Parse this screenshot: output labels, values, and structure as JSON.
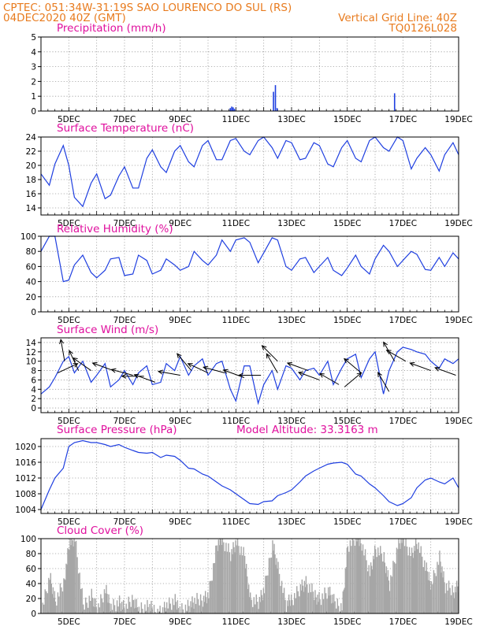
{
  "header": {
    "line1": "CPTEC:   051:34W-31:19S   SAO LOURENCO DO SUL (RS)",
    "line2": "04DEC2020 40Z (GMT)",
    "grid_note": "Vertical Grid Line: 40Z",
    "code": "TQ0126L028"
  },
  "x_axis": {
    "start_day": 4,
    "end_day": 19,
    "tick_labels": [
      "5DEC",
      "7DEC",
      "9DEC",
      "11DEC",
      "13DEC",
      "15DEC",
      "17DEC",
      "19DEC"
    ]
  },
  "colors": {
    "series": "#1f3fe0",
    "arrow": "#000000",
    "cloud": "#a6a6a6",
    "header": "#e87b1e",
    "title": "#e0109e"
  },
  "chart_data": [
    {
      "type": "bar",
      "title": "Precipitation (mm/h)",
      "ylim": [
        0,
        5
      ],
      "yticks": [
        0,
        1,
        2,
        3,
        4,
        5
      ],
      "x": [
        10.8,
        10.85,
        10.9,
        10.95,
        12.35,
        12.42,
        12.48,
        16.7
      ],
      "values": [
        0.2,
        0.3,
        0.25,
        0.15,
        1.3,
        1.75,
        0.2,
        1.2
      ]
    },
    {
      "type": "line",
      "title": "Surface Temperature (nC)",
      "ylim": [
        13,
        24
      ],
      "yticks": [
        14,
        16,
        18,
        20,
        22,
        24
      ],
      "x": [
        4.0,
        4.3,
        4.5,
        4.8,
        5.0,
        5.2,
        5.5,
        5.8,
        6.0,
        6.3,
        6.5,
        6.8,
        7.0,
        7.3,
        7.5,
        7.8,
        8.0,
        8.3,
        8.5,
        8.8,
        9.0,
        9.3,
        9.5,
        9.8,
        10.0,
        10.3,
        10.5,
        10.8,
        11.0,
        11.3,
        11.5,
        11.8,
        12.0,
        12.3,
        12.5,
        12.8,
        13.0,
        13.3,
        13.5,
        13.8,
        14.0,
        14.3,
        14.5,
        14.8,
        15.0,
        15.3,
        15.5,
        15.8,
        16.0,
        16.3,
        16.5,
        16.8,
        17.0,
        17.3,
        17.5,
        17.8,
        18.0,
        18.3,
        18.5,
        18.8,
        19.0
      ],
      "values": [
        18.8,
        17.2,
        20.2,
        22.8,
        20.0,
        15.5,
        14.2,
        17.5,
        18.8,
        15.3,
        15.8,
        18.5,
        19.8,
        16.8,
        16.8,
        21.0,
        22.2,
        19.8,
        19.0,
        22.0,
        22.8,
        20.5,
        19.8,
        22.8,
        23.5,
        20.8,
        20.8,
        23.5,
        23.8,
        22.0,
        21.5,
        23.5,
        24.0,
        22.5,
        21.0,
        23.5,
        23.2,
        20.8,
        21.0,
        23.2,
        22.8,
        20.2,
        19.8,
        22.5,
        23.5,
        21.0,
        20.5,
        23.5,
        24.0,
        22.5,
        22.0,
        24.0,
        23.5,
        19.5,
        21.0,
        22.5,
        21.5,
        19.2,
        21.5,
        23.2,
        21.5
      ]
    },
    {
      "type": "line",
      "title": "Relative Humidity (%)",
      "ylim": [
        0,
        100
      ],
      "yticks": [
        0,
        20,
        40,
        60,
        80,
        100
      ],
      "x": [
        4.0,
        4.3,
        4.5,
        4.8,
        5.0,
        5.2,
        5.5,
        5.8,
        6.0,
        6.3,
        6.5,
        6.8,
        7.0,
        7.3,
        7.5,
        7.8,
        8.0,
        8.3,
        8.5,
        8.8,
        9.0,
        9.3,
        9.5,
        9.8,
        10.0,
        10.3,
        10.5,
        10.8,
        11.0,
        11.3,
        11.5,
        11.8,
        12.0,
        12.3,
        12.5,
        12.8,
        13.0,
        13.3,
        13.5,
        13.8,
        14.0,
        14.3,
        14.5,
        14.8,
        15.0,
        15.3,
        15.5,
        15.8,
        16.0,
        16.3,
        16.5,
        16.8,
        17.0,
        17.3,
        17.5,
        17.8,
        18.0,
        18.3,
        18.5,
        18.8,
        19.0
      ],
      "values": [
        80,
        100,
        100,
        40,
        42,
        62,
        75,
        52,
        45,
        55,
        70,
        72,
        48,
        50,
        75,
        68,
        50,
        55,
        70,
        62,
        55,
        60,
        80,
        68,
        62,
        75,
        95,
        80,
        95,
        98,
        92,
        65,
        78,
        98,
        95,
        60,
        55,
        70,
        72,
        52,
        60,
        72,
        55,
        48,
        58,
        75,
        60,
        50,
        70,
        88,
        80,
        60,
        68,
        80,
        76,
        56,
        55,
        72,
        60,
        78,
        70
      ]
    },
    {
      "type": "line",
      "title": "Surface Wind (m/s)",
      "ylim": [
        -1,
        15
      ],
      "yticks": [
        0,
        2,
        4,
        6,
        8,
        10,
        12,
        14
      ],
      "x": [
        4.0,
        4.3,
        4.5,
        4.8,
        5.0,
        5.2,
        5.5,
        5.8,
        6.0,
        6.3,
        6.5,
        6.8,
        7.0,
        7.3,
        7.5,
        7.8,
        8.0,
        8.3,
        8.5,
        8.8,
        9.0,
        9.3,
        9.5,
        9.8,
        10.0,
        10.3,
        10.5,
        10.8,
        11.0,
        11.3,
        11.5,
        11.8,
        12.0,
        12.3,
        12.5,
        12.8,
        13.0,
        13.3,
        13.5,
        13.8,
        14.0,
        14.3,
        14.5,
        14.8,
        15.0,
        15.3,
        15.5,
        15.8,
        16.0,
        16.3,
        16.5,
        16.8,
        17.0,
        17.3,
        17.5,
        17.8,
        18.0,
        18.3,
        18.5,
        18.8,
        19.0
      ],
      "values": [
        3.0,
        4.5,
        6.5,
        10.0,
        11.0,
        7.5,
        10.0,
        5.5,
        7.0,
        9.5,
        4.5,
        6.0,
        8.0,
        5.0,
        7.5,
        9.0,
        5.0,
        5.5,
        9.5,
        8.0,
        11.0,
        7.0,
        9.0,
        10.5,
        7.0,
        9.5,
        10.0,
        4.0,
        1.5,
        9.0,
        9.0,
        1.0,
        5.0,
        8.0,
        4.0,
        9.0,
        8.5,
        6.0,
        8.0,
        8.5,
        7.0,
        10.0,
        5.0,
        8.5,
        10.5,
        11.5,
        6.5,
        10.5,
        12.0,
        3.0,
        8.0,
        12.0,
        13.0,
        12.5,
        12.0,
        11.5,
        10.0,
        8.5,
        10.5,
        9.5,
        10.5
      ],
      "arrows": [
        {
          "x": 4.6,
          "y": 7.5,
          "angle_deg": 25
        },
        {
          "x": 4.85,
          "y": 10.0,
          "angle_deg": 100
        },
        {
          "x": 5.35,
          "y": 8.0,
          "angle_deg": 115
        },
        {
          "x": 5.8,
          "y": 8.0,
          "angle_deg": 145
        },
        {
          "x": 6.6,
          "y": 8.0,
          "angle_deg": 160
        },
        {
          "x": 7.3,
          "y": 7.0,
          "angle_deg": 165
        },
        {
          "x": 7.7,
          "y": 6.8,
          "angle_deg": 180
        },
        {
          "x": 8.1,
          "y": 5.5,
          "angle_deg": 160
        },
        {
          "x": 9.0,
          "y": 7.0,
          "angle_deg": 170
        },
        {
          "x": 9.4,
          "y": 8.0,
          "angle_deg": 130
        },
        {
          "x": 10.0,
          "y": 7.5,
          "angle_deg": 155
        },
        {
          "x": 10.6,
          "y": 7.5,
          "angle_deg": 165
        },
        {
          "x": 11.3,
          "y": 6.5,
          "angle_deg": 160
        },
        {
          "x": 11.9,
          "y": 7.0,
          "angle_deg": 180
        },
        {
          "x": 12.5,
          "y": 10.0,
          "angle_deg": 135
        },
        {
          "x": 12.5,
          "y": 7.5,
          "angle_deg": 120
        },
        {
          "x": 13.6,
          "y": 8.0,
          "angle_deg": 160
        },
        {
          "x": 14.0,
          "y": 6.0,
          "angle_deg": 160
        },
        {
          "x": 14.7,
          "y": 5.0,
          "angle_deg": 150
        },
        {
          "x": 14.9,
          "y": 4.5,
          "angle_deg": 40
        },
        {
          "x": 15.5,
          "y": 7.5,
          "angle_deg": 140
        },
        {
          "x": 16.5,
          "y": 3.5,
          "angle_deg": 120
        },
        {
          "x": 16.7,
          "y": 10.0,
          "angle_deg": 120
        },
        {
          "x": 17.1,
          "y": 10.0,
          "angle_deg": 150
        },
        {
          "x": 18.0,
          "y": 8.0,
          "angle_deg": 160
        },
        {
          "x": 18.9,
          "y": 7.0,
          "angle_deg": 160
        }
      ]
    },
    {
      "type": "line",
      "title": "Surface Pressure (hPa)",
      "subtitle": "Model Altitude: 33.3163 m",
      "ylim": [
        1003,
        1022
      ],
      "yticks": [
        1004,
        1008,
        1012,
        1016,
        1020
      ],
      "x": [
        4.0,
        4.3,
        4.5,
        4.8,
        5.0,
        5.2,
        5.5,
        5.8,
        6.0,
        6.3,
        6.5,
        6.8,
        7.0,
        7.3,
        7.5,
        7.8,
        8.0,
        8.3,
        8.5,
        8.8,
        9.0,
        9.3,
        9.5,
        9.8,
        10.0,
        10.3,
        10.5,
        10.8,
        11.0,
        11.3,
        11.5,
        11.8,
        12.0,
        12.3,
        12.5,
        12.8,
        13.0,
        13.3,
        13.5,
        13.8,
        14.0,
        14.3,
        14.5,
        14.8,
        15.0,
        15.3,
        15.5,
        15.8,
        16.0,
        16.3,
        16.5,
        16.8,
        17.0,
        17.3,
        17.5,
        17.8,
        18.0,
        18.3,
        18.5,
        18.8,
        19.0
      ],
      "values": [
        1004.0,
        1009.0,
        1012.0,
        1014.5,
        1020.0,
        1021.0,
        1021.5,
        1021.0,
        1021.0,
        1020.5,
        1020.0,
        1020.5,
        1019.8,
        1019.0,
        1018.5,
        1018.3,
        1018.5,
        1017.2,
        1017.8,
        1017.5,
        1016.5,
        1014.5,
        1014.3,
        1013.0,
        1012.5,
        1011.0,
        1010.0,
        1009.0,
        1008.0,
        1006.5,
        1005.5,
        1005.3,
        1006.0,
        1006.2,
        1007.5,
        1008.3,
        1009.0,
        1011.0,
        1012.5,
        1013.8,
        1014.5,
        1015.5,
        1015.8,
        1016.0,
        1015.5,
        1013.0,
        1012.5,
        1010.5,
        1009.5,
        1007.5,
        1006.0,
        1005.0,
        1005.5,
        1007.0,
        1009.5,
        1011.5,
        1012.0,
        1011.0,
        1010.5,
        1012.0,
        1009.5
      ]
    },
    {
      "type": "bar",
      "title": "Cloud Cover (%)",
      "ylim": [
        0,
        100
      ],
      "yticks": [
        0,
        20,
        40,
        60,
        80,
        100
      ],
      "x": [
        4.0,
        4.3,
        4.5,
        4.8,
        5.0,
        5.2,
        5.5,
        5.8,
        6.0,
        6.3,
        6.5,
        6.8,
        7.0,
        7.3,
        7.5,
        7.8,
        8.0,
        8.3,
        8.5,
        8.8,
        9.0,
        9.3,
        9.5,
        9.8,
        10.0,
        10.3,
        10.5,
        10.8,
        11.0,
        11.3,
        11.5,
        11.8,
        12.0,
        12.3,
        12.5,
        12.8,
        13.0,
        13.3,
        13.5,
        13.8,
        14.0,
        14.3,
        14.5,
        14.8,
        15.0,
        15.3,
        15.5,
        15.8,
        16.0,
        16.3,
        16.5,
        16.8,
        17.0,
        17.3,
        17.5,
        17.8,
        18.0,
        18.3,
        18.5,
        18.8,
        19.0
      ],
      "values": [
        5,
        50,
        15,
        40,
        95,
        100,
        10,
        25,
        5,
        30,
        10,
        15,
        5,
        20,
        5,
        8,
        5,
        2,
        10,
        15,
        5,
        10,
        15,
        20,
        25,
        90,
        100,
        80,
        95,
        75,
        20,
        15,
        30,
        95,
        60,
        10,
        20,
        35,
        40,
        25,
        20,
        30,
        15,
        10,
        90,
        100,
        95,
        55,
        85,
        75,
        40,
        90,
        100,
        80,
        95,
        60,
        40,
        75,
        35,
        30,
        40
      ]
    }
  ]
}
